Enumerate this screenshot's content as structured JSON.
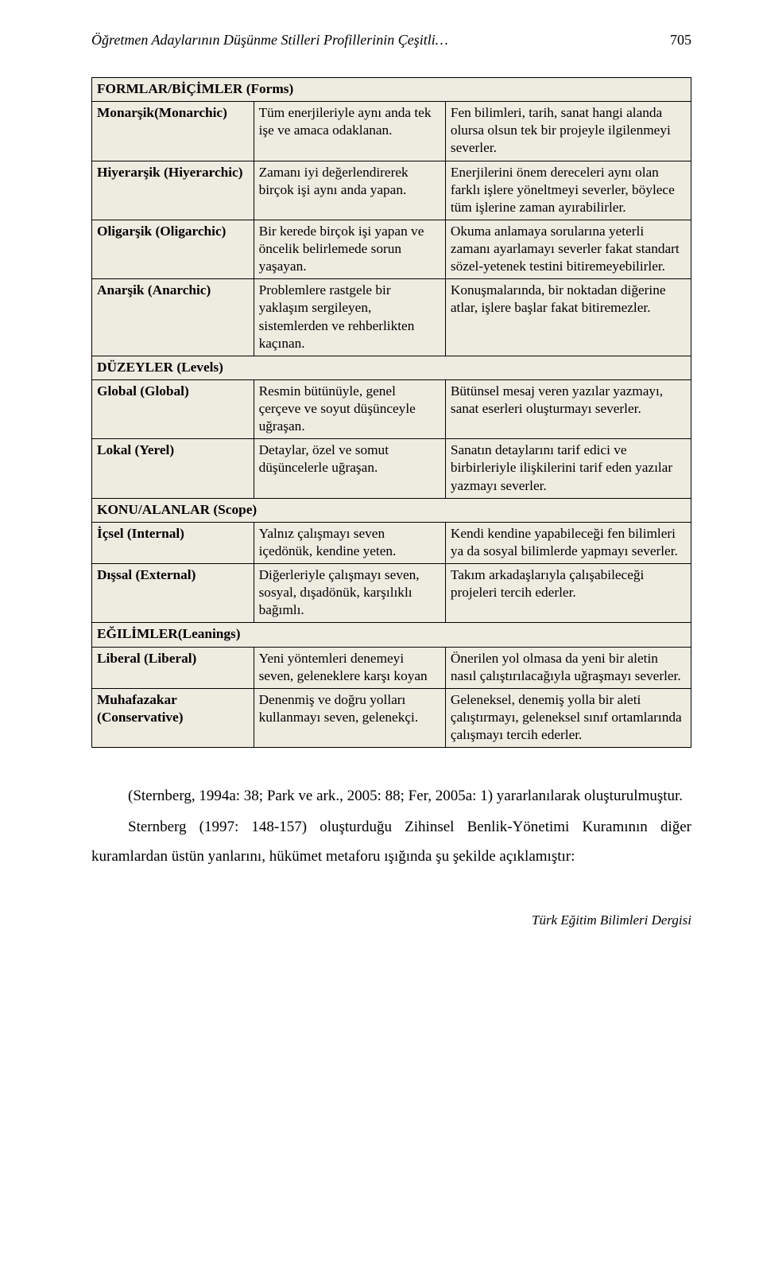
{
  "header": {
    "title_italic": "Öğretmen Adaylarının Düşünme Stilleri Profillerinin Çeşitli…",
    "pageno": "705"
  },
  "colors": {
    "table_bg": "#eeece1",
    "border": "#000000",
    "page_bg": "#ffffff"
  },
  "sections": {
    "forms": "FORMLAR/BİÇİMLER (Forms)",
    "levels": "DÜZEYLER (Levels)",
    "scope": "KONU/ALANLAR (Scope)",
    "leanings": "EĞILİMLER(Leanings)"
  },
  "rows": {
    "monarchic": {
      "label": "Monarşik(Monarchic)",
      "c2": "Tüm enerjileriyle aynı anda tek işe ve amaca odaklanan.",
      "c3": "Fen bilimleri, tarih, sanat hangi alanda olursa olsun tek bir projeyle ilgilenmeyi severler."
    },
    "hierarchic": {
      "label": "Hiyerarşik (Hiyerarchic)",
      "c2": "Zamanı iyi değerlendirerek birçok işi aynı anda yapan.",
      "c3": "Enerjilerini önem dereceleri aynı olan farklı işlere yöneltmeyi severler, böylece tüm işlerine zaman ayırabilirler."
    },
    "oligarchic": {
      "label": "Oligarşik (Oligarchic)",
      "c2": "Bir kerede birçok işi yapan ve öncelik belirlemede sorun yaşayan.",
      "c3": "Okuma anlamaya sorularına yeterli zamanı ayarlamayı severler fakat standart sözel-yetenek testini bitiremeyebilirler."
    },
    "anarchic": {
      "label": "Anarşik (Anarchic)",
      "c2": "Problemlere rastgele bir yaklaşım sergileyen, sistemlerden ve rehberlikten kaçınan.",
      "c3": "Konuşmalarında, bir noktadan diğerine atlar, işlere başlar fakat bitiremezler."
    },
    "global": {
      "label": "Global (Global)",
      "c2": "Resmin bütünüyle, genel çerçeve ve soyut düşünceyle uğraşan.",
      "c3": "Bütünsel mesaj veren yazılar yazmayı, sanat eserleri oluşturmayı severler."
    },
    "local": {
      "label": "Lokal (Yerel)",
      "c2": "Detaylar, özel ve somut düşüncelerle uğraşan.",
      "c3": "Sanatın detaylarını tarif edici ve birbirleriyle ilişkilerini tarif eden yazılar yazmayı severler."
    },
    "internal": {
      "label": "İçsel (Internal)",
      "c2": "Yalnız çalışmayı seven içedönük, kendine yeten.",
      "c3": "Kendi kendine yapabileceği fen bilimleri ya da sosyal bilimlerde yapmayı severler."
    },
    "external": {
      "label": "Dışsal (External)",
      "c2": "Diğerleriyle çalışmayı seven, sosyal, dışadönük, karşılıklı bağımlı.",
      "c3": "Takım arkadaşlarıyla çalışabileceği projeleri tercih ederler."
    },
    "liberal": {
      "label": "Liberal (Liberal)",
      "c2": "Yeni yöntemleri denemeyi seven, geleneklere karşı koyan",
      "c3": "Önerilen yol olmasa da yeni bir aletin nasıl çalıştırılacağıyla uğraşmayı severler."
    },
    "conservative": {
      "label": "Muhafazakar (Conservative)",
      "c2": "Denenmiş ve doğru yolları kullanmayı seven, gelenekçi.",
      "c3": "Geleneksel, denemiş yolla bir aleti çalıştırmayı, geleneksel sınıf ortamlarında çalışmayı tercih ederler."
    }
  },
  "body": {
    "p1": "(Sternberg, 1994a: 38; Park ve ark., 2005: 88; Fer, 2005a: 1) yararlanılarak oluşturulmuştur.",
    "p2": "Sternberg (1997: 148-157) oluşturduğu Zihinsel Benlik-Yönetimi Kuramının diğer kuramlardan üstün yanlarını, hükümet metaforu ışığında şu şekilde açıklamıştır:"
  },
  "footer": "Türk Eğitim Bilimleri Dergisi"
}
